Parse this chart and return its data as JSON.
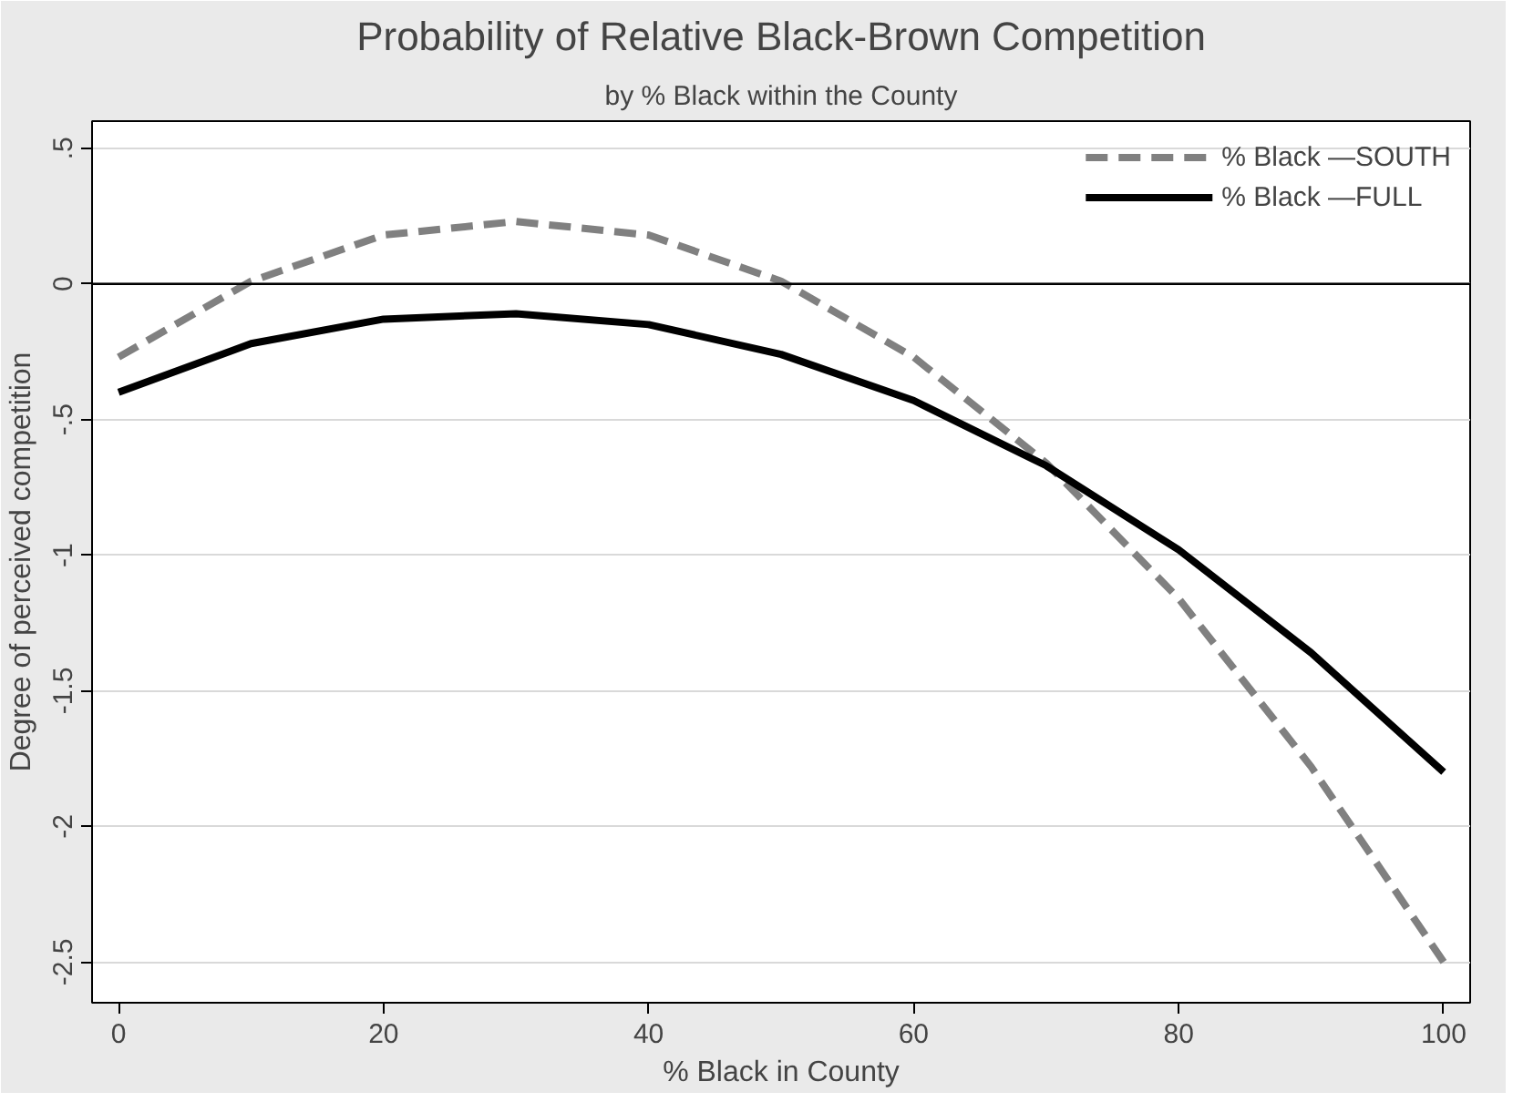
{
  "chart_data": {
    "type": "line",
    "title": "Probability of Relative Black-Brown Competition",
    "subtitle": "by % Black within the County",
    "xlabel": "% Black in County",
    "ylabel": "Degree of perceived competition",
    "x": [
      0,
      10,
      20,
      30,
      40,
      50,
      60,
      70,
      80,
      90,
      100
    ],
    "series": [
      {
        "name": "% Black —SOUTH",
        "color": "#808080",
        "line_style": "dashed",
        "values": [
          -0.27,
          0.01,
          0.18,
          0.23,
          0.18,
          0.01,
          -0.27,
          -0.66,
          -1.16,
          -1.78,
          -2.5
        ]
      },
      {
        "name": "% Black —FULL",
        "color": "#000000",
        "line_style": "solid",
        "values": [
          -0.4,
          -0.22,
          -0.13,
          -0.11,
          -0.15,
          -0.26,
          -0.43,
          -0.67,
          -0.98,
          -1.36,
          -1.8
        ]
      }
    ],
    "xlim": [
      -2,
      102
    ],
    "ylim": [
      -2.65,
      0.6
    ],
    "xticks": [
      0,
      20,
      40,
      60,
      80,
      100
    ],
    "yticks": [
      {
        "value": 0.5,
        "label": ".5"
      },
      {
        "value": 0,
        "label": "0"
      },
      {
        "value": -0.5,
        "label": "-.5"
      },
      {
        "value": -1,
        "label": "-1"
      },
      {
        "value": -1.5,
        "label": "-1.5"
      },
      {
        "value": -2,
        "label": "-2"
      },
      {
        "value": -2.5,
        "label": "-2.5"
      }
    ],
    "ref_lines": [
      {
        "axis": "y",
        "value": 0,
        "color": "#000000"
      }
    ],
    "grid": "y",
    "legend": "top right",
    "marker": "none"
  }
}
